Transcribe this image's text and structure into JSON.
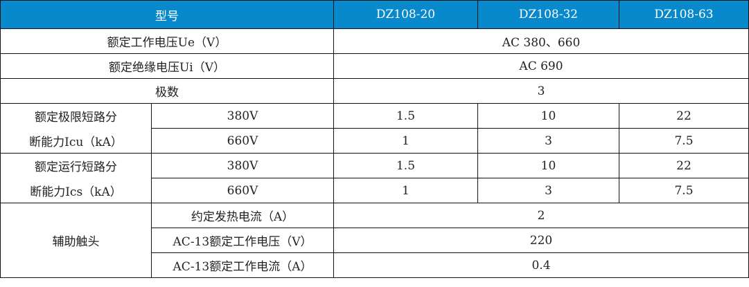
{
  "header": {
    "model_label": "型号",
    "models": [
      "DZ108-20",
      "DZ108-32",
      "DZ108-63"
    ]
  },
  "rows": {
    "rated_voltage": {
      "label": "额定工作电压Ue（V）",
      "value": "AC 380、660"
    },
    "insulation_voltage": {
      "label": "额定绝缘电压Ui（V）",
      "value": "AC 690"
    },
    "poles": {
      "label": "极数",
      "value": "3"
    },
    "icu": {
      "label_line1": "额定极限短路分",
      "label_line2": "断能力Icu（kA）",
      "sub": [
        {
          "voltage": "380V",
          "values": [
            "1.5",
            "10",
            "22"
          ]
        },
        {
          "voltage": "660V",
          "values": [
            "1",
            "3",
            "7.5"
          ]
        }
      ]
    },
    "ics": {
      "label_line1": "额定运行短路分",
      "label_line2": "断能力Ics（kA）",
      "sub": [
        {
          "voltage": "380V",
          "values": [
            "1.5",
            "10",
            "22"
          ]
        },
        {
          "voltage": "660V",
          "values": [
            "1",
            "3",
            "7.5"
          ]
        }
      ]
    },
    "aux": {
      "label": "辅助触头",
      "sub": [
        {
          "label": "约定发热电流（A）",
          "value": "2"
        },
        {
          "label": "AC-13额定工作电压（V）",
          "value": "220"
        },
        {
          "label": "AC-13额定工作电流（A）",
          "value": "0.4"
        }
      ]
    }
  },
  "colors": {
    "header_bg": "#0789cc",
    "header_text": "#ffffff",
    "border": "#111111"
  }
}
